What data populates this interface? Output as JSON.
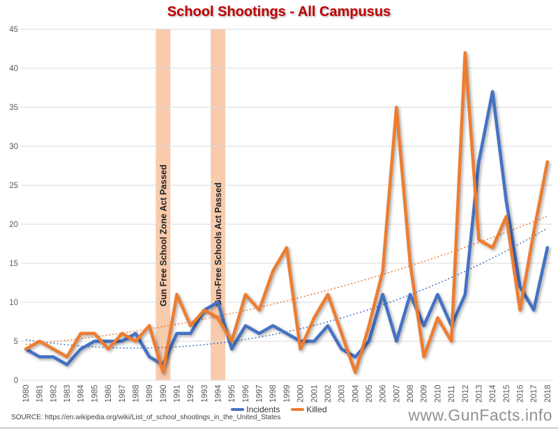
{
  "title": "School Shootings - All Campusus",
  "source_note": "SOURCE: https://en.wikipedia.org/wiki/List_of_school_shootings_in_the_United_States",
  "watermark": "www.GunFacts.info",
  "colors": {
    "title": "#C00000",
    "incidents": "#4472C4",
    "killed": "#ED7D31",
    "band": "#F8CBAD",
    "gridline": "#D9D9D9",
    "axis_text": "#595959"
  },
  "annotations": [
    {
      "label": "Gun Free School Zone Act Passed",
      "year": 1990
    },
    {
      "label": "Gun-Free Schools Act Passed",
      "year": 1994
    }
  ],
  "legend": {
    "items": [
      {
        "label": "Incidents"
      },
      {
        "label": "Killed"
      }
    ]
  },
  "chart_data": {
    "type": "line",
    "title": "School Shootings - All Campusus",
    "xlabel": "",
    "ylabel": "",
    "ylim": [
      0,
      45
    ],
    "ytick_step": 5,
    "grid": true,
    "legend_position": "bottom",
    "categories": [
      1980,
      1981,
      1982,
      1983,
      1984,
      1985,
      1986,
      1987,
      1988,
      1989,
      1990,
      1991,
      1992,
      1993,
      1994,
      1995,
      1996,
      1997,
      1998,
      1999,
      2000,
      2001,
      2002,
      2003,
      2004,
      2005,
      2006,
      2007,
      2008,
      2009,
      2010,
      2011,
      2012,
      2013,
      2014,
      2015,
      2016,
      2017,
      2018
    ],
    "series": [
      {
        "name": "Incidents",
        "color": "#4472C4",
        "values": [
          4,
          3,
          3,
          2,
          4,
          5,
          5,
          5,
          6,
          3,
          2,
          6,
          6,
          9,
          10,
          4,
          7,
          6,
          7,
          6,
          5,
          5,
          7,
          4,
          3,
          5,
          11,
          5,
          11,
          7,
          11,
          7,
          11,
          28,
          37,
          23,
          12,
          9,
          17
        ],
        "trend": {
          "a": 0.017,
          "b": -0.27,
          "c": 5.2
        }
      },
      {
        "name": "Killed",
        "color": "#ED7D31",
        "values": [
          4,
          5,
          4,
          3,
          6,
          6,
          4,
          6,
          5,
          7,
          1,
          11,
          7,
          9,
          8,
          5,
          11,
          9,
          14,
          17,
          4,
          8,
          11,
          6,
          1,
          7,
          14,
          35,
          15,
          3,
          8,
          5,
          42,
          18,
          17,
          21,
          9,
          19,
          28
        ],
        "trend": {
          "a": 0.0073,
          "b": 0.155,
          "c": 4.6
        }
      }
    ]
  }
}
